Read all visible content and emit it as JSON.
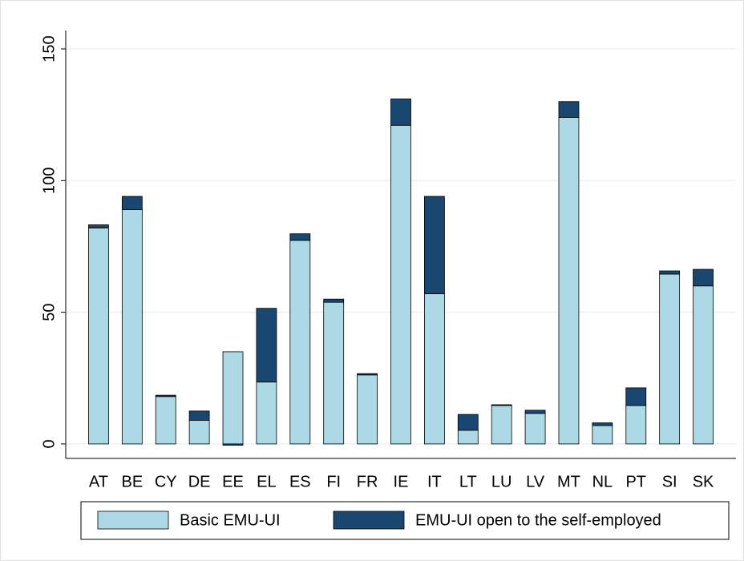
{
  "chart_data": {
    "type": "stacked-bar",
    "categories": [
      "AT",
      "BE",
      "CY",
      "DE",
      "EE",
      "EL",
      "ES",
      "FI",
      "FR",
      "IE",
      "IT",
      "LT",
      "LU",
      "LV",
      "MT",
      "NL",
      "PT",
      "SI",
      "SK"
    ],
    "series": [
      {
        "name": "Basic EMU-UI",
        "color": "#add8e6",
        "values": [
          82,
          89,
          18,
          9,
          35,
          23.5,
          77.3,
          53.8,
          26.2,
          121,
          57,
          5.2,
          14.6,
          11.6,
          124,
          7,
          14.6,
          64.5,
          60
        ]
      },
      {
        "name": "EMU-UI open to the self-employed",
        "color": "#1a476f",
        "values": [
          1.2,
          5,
          0.5,
          3.5,
          -0.5,
          28,
          2.5,
          1.2,
          0.5,
          10,
          37,
          6,
          0.3,
          1.2,
          6,
          1,
          6.7,
          1.2,
          6.3
        ]
      }
    ],
    "ylim": [
      -5.5,
      157
    ],
    "yticks": [
      0,
      50,
      100,
      150
    ],
    "grid": true
  }
}
